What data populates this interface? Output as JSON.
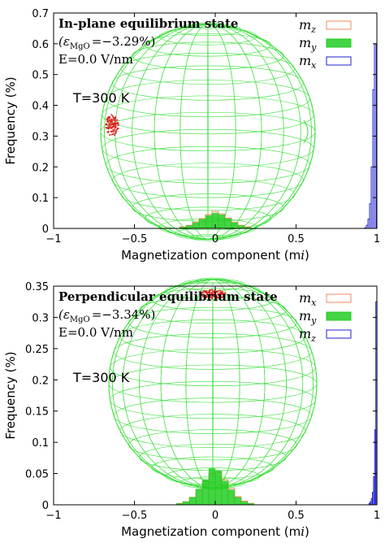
{
  "colors": {
    "mz_top": "#f08a5d",
    "my": "#22cc22",
    "mx_top": "#1f1fd0",
    "mx_bottom": "#f08a5d",
    "mz_bottom": "#1f1fd0",
    "sphere": "#33dd33",
    "cluster": "#e02020"
  },
  "chart_data": [
    {
      "type": "bar",
      "panel": "top",
      "title": "In-plane equilibrium state",
      "strain_prefix": "(ε",
      "strain_sub": "MgO",
      "strain_value": "=−3.29%)",
      "field": "E=0.0 V/nm",
      "temperature": "T=300 K",
      "xlabel": "Magnetization component (m",
      "xlabel_sub": "i",
      "xlabel_end": ")",
      "ylabel": "Frequency (%)",
      "xlim": [
        -1,
        1
      ],
      "ylim": [
        0,
        0.7
      ],
      "xticks": [
        -1,
        -0.5,
        0,
        0.5,
        1
      ],
      "xtick_labels": [
        "−1",
        "−0.5",
        "0",
        "0.5",
        "1"
      ],
      "yticks": [
        0,
        0.1,
        0.2,
        0.3,
        0.4,
        0.5,
        0.6,
        0.7
      ],
      "ytick_labels": [
        "0",
        "0.1",
        "0.2",
        "0.3",
        "0.4",
        "0.5",
        "0.6",
        "0.7"
      ],
      "grid": false,
      "legend_position": "top-right",
      "series": [
        {
          "name": "m",
          "name_sub": "z",
          "style": "outline",
          "color_key": "mz_top",
          "x_center": [
            -0.2,
            -0.16,
            -0.12,
            -0.08,
            -0.04,
            0.0,
            0.04,
            0.08,
            0.12,
            0.16,
            0.2
          ],
          "values": [
            0.005,
            0.01,
            0.02,
            0.032,
            0.045,
            0.055,
            0.047,
            0.033,
            0.02,
            0.01,
            0.005
          ]
        },
        {
          "name": "m",
          "name_sub": "y",
          "style": "filled",
          "color_key": "my",
          "x_center": [
            -0.2,
            -0.16,
            -0.12,
            -0.08,
            -0.04,
            0.0,
            0.04,
            0.08,
            0.12,
            0.16,
            0.2
          ],
          "values": [
            0.004,
            0.009,
            0.018,
            0.03,
            0.042,
            0.05,
            0.044,
            0.031,
            0.018,
            0.009,
            0.004
          ]
        },
        {
          "name": "m",
          "name_sub": "x",
          "style": "outline",
          "color_key": "mx_top",
          "x_center": [
            0.93,
            0.94,
            0.95,
            0.96,
            0.97,
            0.98,
            0.99
          ],
          "values": [
            0.002,
            0.01,
            0.03,
            0.08,
            0.2,
            0.45,
            0.6
          ]
        }
      ]
    },
    {
      "type": "bar",
      "panel": "bottom",
      "title": "Perpendicular equilibrium state",
      "strain_prefix": "(ε",
      "strain_sub": "MgO",
      "strain_value": "=−3.34%)",
      "field": "E=0.0 V/nm",
      "temperature": "T=300 K",
      "xlabel": "Magnetization component (m",
      "xlabel_sub": "i",
      "xlabel_end": ")",
      "ylabel": "Frequency (%)",
      "xlim": [
        -1,
        1
      ],
      "ylim": [
        0,
        0.35
      ],
      "xticks": [
        -1,
        -0.5,
        0,
        0.5,
        1
      ],
      "xtick_labels": [
        "−1",
        "−0.5",
        "0",
        "0.5",
        "1"
      ],
      "yticks": [
        0,
        0.05,
        0.1,
        0.15,
        0.2,
        0.25,
        0.3,
        0.35
      ],
      "ytick_labels": [
        "0",
        "0.05",
        "0.1",
        "0.15",
        "0.2",
        "0.25",
        "0.3",
        "0.35"
      ],
      "grid": false,
      "legend_position": "top-right",
      "series": [
        {
          "name": "m",
          "name_sub": "x",
          "style": "outline",
          "color_key": "mx_bottom",
          "x_center": [
            -0.22,
            -0.18,
            -0.14,
            -0.1,
            -0.06,
            -0.02,
            0.02,
            0.06,
            0.1,
            0.14,
            0.18,
            0.22
          ],
          "values": [
            0.002,
            0.005,
            0.012,
            0.024,
            0.037,
            0.05,
            0.052,
            0.04,
            0.026,
            0.013,
            0.006,
            0.002
          ]
        },
        {
          "name": "m",
          "name_sub": "y",
          "style": "filled",
          "color_key": "my",
          "x_center": [
            -0.22,
            -0.18,
            -0.14,
            -0.1,
            -0.06,
            -0.02,
            0.02,
            0.06,
            0.1,
            0.14,
            0.18,
            0.22
          ],
          "values": [
            0.002,
            0.005,
            0.012,
            0.025,
            0.04,
            0.058,
            0.055,
            0.038,
            0.024,
            0.012,
            0.005,
            0.002
          ]
        },
        {
          "name": "m",
          "name_sub": "z",
          "style": "outline",
          "color_key": "mz_bottom",
          "x_center": [
            0.955,
            0.962,
            0.969,
            0.976,
            0.983,
            0.99,
            0.997
          ],
          "values": [
            0.002,
            0.005,
            0.01,
            0.02,
            0.045,
            0.12,
            0.325
          ]
        }
      ]
    }
  ]
}
